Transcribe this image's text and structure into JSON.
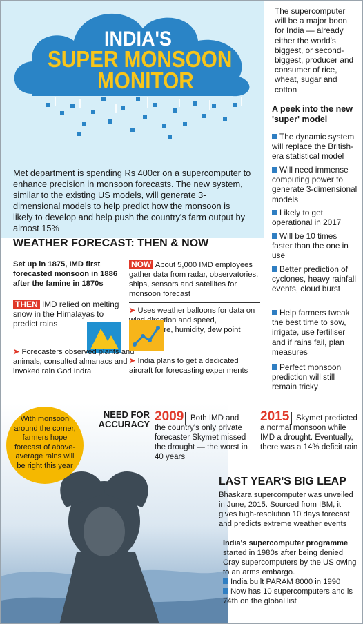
{
  "title": {
    "line1": "INDIA'S",
    "line2": "SUPER MONSOON",
    "line3": "MONITOR"
  },
  "intro": "Met department is spending Rs 400cr on a supercomputer to enhance precision in monsoon forecasts. The new system, similar to the existing US models, will generate 3-dimensional models to help predict how the monsoon is likely to develop and help push the country's farm output by almost 15%",
  "sidebar": {
    "boon": "The supercomputer will be a major boon for India — already either the world's biggest, or second-biggest, producer and consumer of rice, wheat, sugar and cotton",
    "heading": "A peek into the new 'super' model",
    "items": [
      "The dynamic system will replace the British-era statistical model",
      "Will need immense computing power to generate 3-dimensional models",
      "Likely to get operational in 2017",
      "Will be 10 times faster than the one in use",
      "Better prediction of cyclones, heavy rainfall events, cloud burst",
      "Help farmers tweak the best time to sow, irrigate, use fertiliser and if rains fail, plan measures",
      "Perfect monsoon prediction will still remain tricky"
    ]
  },
  "forecast": {
    "title": "WEATHER FORECAST: THEN & NOW",
    "setup": "Set up in 1875, IMD first forecasted monsoon in 1886 after the famine in 1870s",
    "then_tag": "THEN",
    "then_text": "IMD relied on melting snow in the Himalayas to predict rains",
    "forecasters": "Forecasters observed plants and animals, consulted almanacs and invoked rain God Indra",
    "now_tag": "NOW",
    "now_text": "About 5,000 IMD employees gather data from radar, observatories, ships, sensors and satellites for monsoon forecast",
    "balloons": "Uses weather balloons for data on wind direction and speed, temperature, humidity, dew point",
    "aircraft": "India plans to get a dedicated aircraft for forecasting experiments"
  },
  "bubble": "With monsoon around the corner, farmers hope forecast of above-average rains will be right this year",
  "accuracy": {
    "heading": "NEED FOR ACCURACY",
    "y2009": "2009",
    "t2009": "Both IMD and the country's only private forecaster Skymet missed the drought — the worst in 40 years",
    "y2015": "2015",
    "t2015": "Skymet predicted a normal monsoon while IMD a drought. Eventually, there was a 14% deficit rain"
  },
  "leap": {
    "title": "LAST YEAR'S BIG LEAP",
    "text": "Bhaskara supercomputer was unveiled in June, 2015. Sourced from IBM, it gives high-resolution 10 days forecast and predicts extreme weather events",
    "prog_head": "India's supercomputer programme",
    "prog_text": "started in 1980s after being denied Cray supercomputers by the US owing to an arms embargo.",
    "prog_items": [
      "India built PARAM 8000 in 1990",
      "Now has 10 supercomputers and is 74th on the global list"
    ]
  },
  "colors": {
    "accent": "#e0392a",
    "blue": "#2f7ec2",
    "yellow": "#f7c51a",
    "band": "#d6eef8"
  },
  "icons": [
    "cloud-rain-icon",
    "mountain-icon",
    "line-chart-icon"
  ]
}
